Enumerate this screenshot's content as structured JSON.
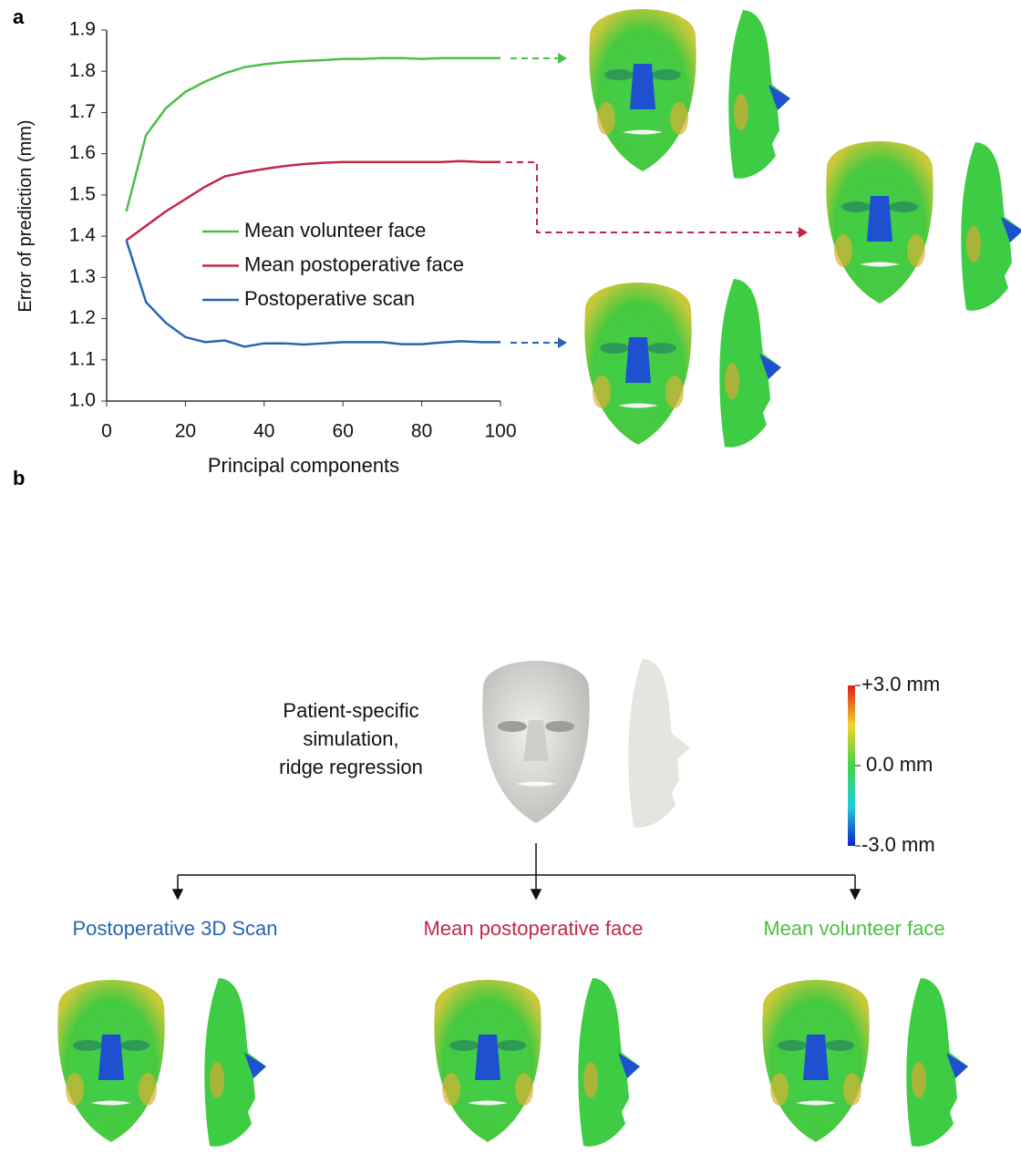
{
  "panel_labels": [
    "a",
    "b"
  ],
  "chart_data": {
    "type": "line",
    "x": [
      5,
      10,
      15,
      20,
      25,
      30,
      35,
      40,
      45,
      50,
      55,
      60,
      65,
      70,
      75,
      80,
      85,
      90,
      95,
      100
    ],
    "series": [
      {
        "name": "Mean volunteer face",
        "color": "#4cbf45",
        "values": [
          1.46,
          1.645,
          1.71,
          1.75,
          1.775,
          1.795,
          1.81,
          1.817,
          1.822,
          1.825,
          1.827,
          1.83,
          1.83,
          1.832,
          1.832,
          1.83,
          1.832,
          1.832,
          1.832,
          1.832
        ]
      },
      {
        "name": "Mean postoperative face",
        "color": "#c0284a",
        "values": [
          1.39,
          1.425,
          1.46,
          1.49,
          1.52,
          1.545,
          1.555,
          1.563,
          1.57,
          1.575,
          1.578,
          1.58,
          1.58,
          1.58,
          1.58,
          1.58,
          1.58,
          1.582,
          1.58,
          1.58
        ]
      },
      {
        "name": "Postoperative scan",
        "color": "#2566b0",
        "values": [
          1.39,
          1.24,
          1.19,
          1.155,
          1.143,
          1.147,
          1.132,
          1.14,
          1.14,
          1.137,
          1.14,
          1.143,
          1.143,
          1.143,
          1.138,
          1.138,
          1.142,
          1.145,
          1.143,
          1.143
        ]
      }
    ],
    "xlabel": "Principal components",
    "ylabel": "Error of prediction (mm)",
    "xlim": [
      0,
      100
    ],
    "xticks": [
      0,
      20,
      40,
      60,
      80,
      100
    ],
    "ylim": [
      1,
      1.9
    ],
    "yticks": [
      {
        "value": 1,
        "label": "1.0"
      },
      1.1,
      1.2,
      1.3,
      1.4,
      1.5,
      1.6,
      1.7,
      1.8,
      1.9
    ],
    "grid": false
  },
  "panel_b": {
    "simulation_label": [
      "Patient-specific",
      "simulation,",
      "ridge regression"
    ],
    "colorbar_labels": [
      "+3.0 mm",
      "0.0 mm",
      "-3.0 mm"
    ],
    "outputs": [
      "Postoperative 3D Scan",
      "Mean postoperative face",
      "Mean volunteer face"
    ]
  }
}
